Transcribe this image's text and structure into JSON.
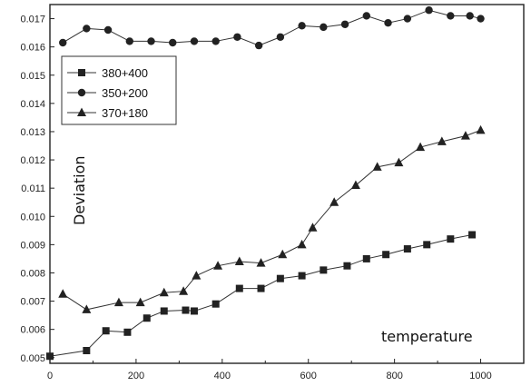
{
  "chart_data": {
    "type": "line",
    "title": "",
    "xlabel": "temperature",
    "ylabel": "Deviation",
    "xlim": [
      0,
      1100
    ],
    "ylim": [
      0.0048,
      0.0175
    ],
    "xticks": [
      0,
      200,
      400,
      600,
      800,
      1000
    ],
    "xtick_labels": [
      "0",
      "200",
      "400",
      "600",
      "800",
      "1000"
    ],
    "yticks": [
      0.005,
      0.006,
      0.007,
      0.008,
      0.009,
      0.01,
      0.011,
      0.012,
      0.013,
      0.014,
      0.015,
      0.016,
      0.017
    ],
    "ytick_labels": [
      "0.005",
      "0.006",
      "0.007",
      "0.008",
      "0.009",
      "0.010",
      "0.011",
      "0.012",
      "0.013",
      "0.014",
      "0.015",
      "0.016",
      "0.017"
    ],
    "grid": false,
    "legend_position": "top-left",
    "series": [
      {
        "name": "380+400",
        "marker": "square",
        "x": [
          0,
          85,
          130,
          180,
          225,
          265,
          315,
          335,
          385,
          440,
          490,
          535,
          585,
          635,
          690,
          735,
          780,
          830,
          875,
          930,
          980
        ],
        "y": [
          0.00505,
          0.00525,
          0.00595,
          0.0059,
          0.0064,
          0.00665,
          0.00668,
          0.00665,
          0.0069,
          0.00745,
          0.00745,
          0.0078,
          0.0079,
          0.0081,
          0.00825,
          0.0085,
          0.00865,
          0.00885,
          0.009,
          0.0092,
          0.00935
        ]
      },
      {
        "name": "350+200",
        "marker": "circle",
        "x": [
          30,
          85,
          135,
          185,
          235,
          285,
          335,
          385,
          435,
          485,
          535,
          585,
          635,
          685,
          735,
          785,
          830,
          880,
          930,
          975,
          1000
        ],
        "y": [
          0.01615,
          0.01665,
          0.0166,
          0.0162,
          0.0162,
          0.01615,
          0.0162,
          0.0162,
          0.01635,
          0.01605,
          0.01635,
          0.01675,
          0.0167,
          0.0168,
          0.0171,
          0.01685,
          0.017,
          0.0173,
          0.0171,
          0.0171,
          0.017
        ]
      },
      {
        "name": "370+180",
        "marker": "triangle",
        "x": [
          30,
          85,
          160,
          210,
          265,
          310,
          340,
          390,
          440,
          490,
          540,
          585,
          610,
          660,
          710,
          760,
          810,
          860,
          910,
          965,
          1000
        ],
        "y": [
          0.00725,
          0.0067,
          0.00695,
          0.00695,
          0.0073,
          0.00735,
          0.0079,
          0.00825,
          0.0084,
          0.00835,
          0.00865,
          0.009,
          0.0096,
          0.0105,
          0.0111,
          0.01175,
          0.0119,
          0.01245,
          0.01265,
          0.01285,
          0.01305
        ]
      }
    ]
  }
}
